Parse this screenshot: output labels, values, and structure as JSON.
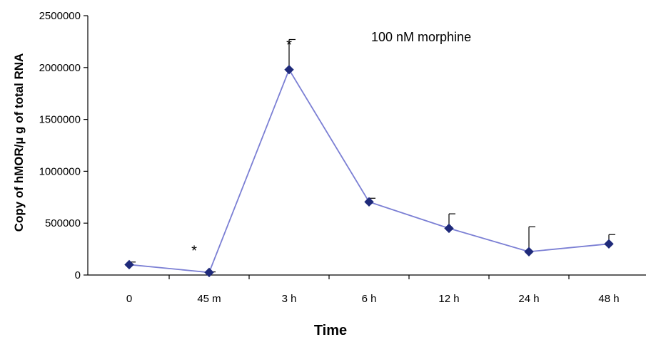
{
  "chart_data": {
    "type": "line",
    "title": "",
    "annotation": "100 nM morphine",
    "xlabel": "Time",
    "ylabel": "Copy of hMOR/µ g of total RNA",
    "ylim": [
      0,
      2500000
    ],
    "yticks": [
      "0",
      "500000",
      "1000000",
      "1500000",
      "2000000",
      "2500000"
    ],
    "categories": [
      "0",
      "45 m",
      "3 h",
      "6 h",
      "12 h",
      "24 h",
      "48 h"
    ],
    "series": [
      {
        "values": [
          100000,
          25000,
          1980000,
          705000,
          450000,
          225000,
          300000
        ],
        "error_upper": [
          125000,
          30000,
          2270000,
          740000,
          590000,
          465000,
          390000
        ],
        "color": "#7B7FD4",
        "marker_color": "#1F2A7A"
      }
    ],
    "significance_markers": [
      {
        "category": "45 m",
        "symbol": "*"
      },
      {
        "category": "3 h",
        "symbol": "*"
      }
    ],
    "grid": false,
    "legend": "none"
  }
}
